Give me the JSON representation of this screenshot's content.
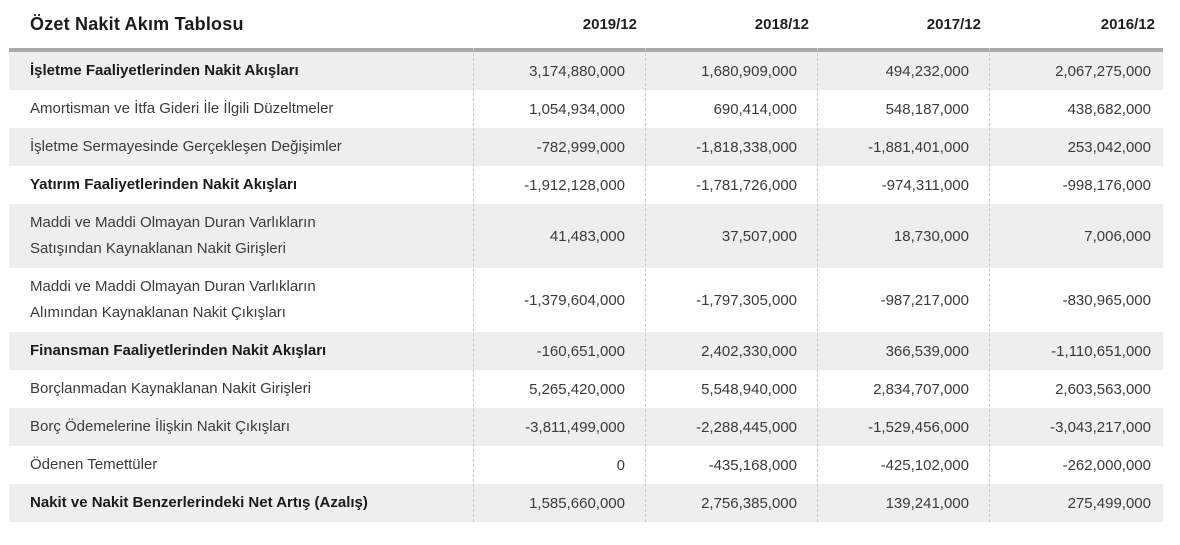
{
  "chart_data": {
    "type": "table",
    "title": "Özet Nakit Akım Tablosu",
    "columns": [
      "2019/12",
      "2018/12",
      "2017/12",
      "2016/12"
    ],
    "rows": [
      {
        "label": "İşletme Faaliyetlerinden Nakit Akışları",
        "bold": true,
        "values": [
          "3,174,880,000",
          "1,680,909,000",
          "494,232,000",
          "2,067,275,000"
        ]
      },
      {
        "label": "Amortisman ve İtfa Gideri İle İlgili Düzeltmeler",
        "bold": false,
        "values": [
          "1,054,934,000",
          "690,414,000",
          "548,187,000",
          "438,682,000"
        ]
      },
      {
        "label": "İşletme Sermayesinde Gerçekleşen Değişimler",
        "bold": false,
        "values": [
          "-782,999,000",
          "-1,818,338,000",
          "-1,881,401,000",
          "253,042,000"
        ]
      },
      {
        "label": "Yatırım Faaliyetlerinden Nakit Akışları",
        "bold": true,
        "values": [
          "-1,912,128,000",
          "-1,781,726,000",
          "-974,311,000",
          "-998,176,000"
        ]
      },
      {
        "label": "Maddi ve Maddi Olmayan Duran Varlıkların\nSatışından Kaynaklanan Nakit Girişleri",
        "bold": false,
        "values": [
          "41,483,000",
          "37,507,000",
          "18,730,000",
          "7,006,000"
        ]
      },
      {
        "label": "Maddi ve Maddi Olmayan Duran Varlıkların\nAlımından Kaynaklanan Nakit Çıkışları",
        "bold": false,
        "values": [
          "-1,379,604,000",
          "-1,797,305,000",
          "-987,217,000",
          "-830,965,000"
        ]
      },
      {
        "label": "Finansman Faaliyetlerinden Nakit Akışları",
        "bold": true,
        "values": [
          "-160,651,000",
          "2,402,330,000",
          "366,539,000",
          "-1,110,651,000"
        ]
      },
      {
        "label": "Borçlanmadan Kaynaklanan Nakit Girişleri",
        "bold": false,
        "values": [
          "5,265,420,000",
          "5,548,940,000",
          "2,834,707,000",
          "2,603,563,000"
        ]
      },
      {
        "label": "Borç Ödemelerine İlişkin Nakit Çıkışları",
        "bold": false,
        "values": [
          "-3,811,499,000",
          "-2,288,445,000",
          "-1,529,456,000",
          "-3,043,217,000"
        ]
      },
      {
        "label": "Ödenen Temettüler",
        "bold": false,
        "values": [
          "0",
          "-435,168,000",
          "-425,102,000",
          "-262,000,000"
        ]
      },
      {
        "label": "Nakit ve Nakit Benzerlerindeki Net Artış (Azalış)",
        "bold": true,
        "values": [
          "1,585,660,000",
          "2,756,385,000",
          "139,241,000",
          "275,499,000"
        ]
      }
    ],
    "layout_hints": {
      "stripe_rows": "odd rows (1st, 3rd, 5th, ...) have light gray background",
      "legend_position": "none",
      "grid": "dashed vertical column separators only"
    }
  },
  "colors": {
    "stripe_background": "#eeeeee",
    "divider_bar": "#a9a9a9",
    "column_separator": "#c9c9c9",
    "text_regular": "#3a3a3a",
    "text_bold": "#1b1b1b",
    "page_background": "#ffffff"
  }
}
